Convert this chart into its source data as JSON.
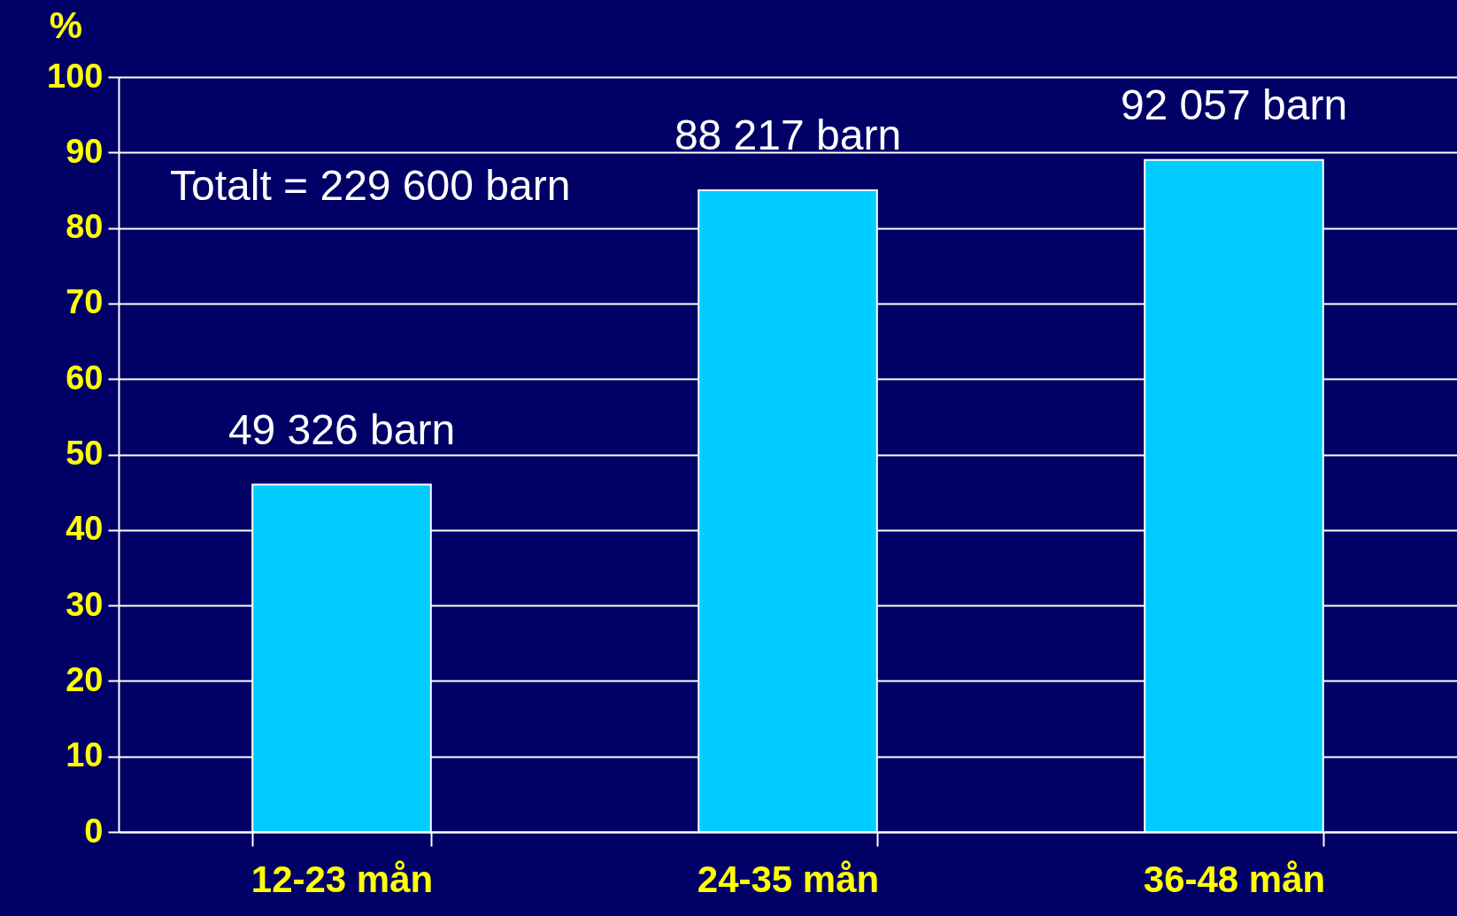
{
  "chart_data": {
    "type": "bar",
    "ylabel": "%",
    "categories": [
      "12-23 mån",
      "24-35 mån",
      "36-48 mån"
    ],
    "values": [
      46,
      85,
      89
    ],
    "color": "#00ccff",
    "ylim": [
      0,
      100
    ],
    "yticks": [
      0,
      10,
      20,
      30,
      40,
      50,
      60,
      70,
      80,
      90,
      100
    ],
    "grid": "y",
    "annotations": [
      "Totalt = 229 600 barn",
      {
        "text": "49 326 barn",
        "x": "12-23 mån",
        "y": 46
      },
      {
        "text": "88 217 barn",
        "x": "24-35 mån",
        "y": 85
      },
      {
        "text": "92 057 barn",
        "x": "36-48 mån",
        "y": 89
      }
    ]
  }
}
